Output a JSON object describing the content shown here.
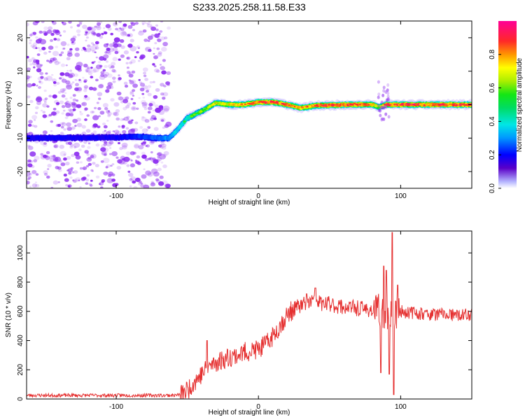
{
  "title": "S233.2025.258.11.58.E33",
  "colors": {
    "snr_line": "#e53030",
    "noise": "#8c2cf0",
    "frame": "#000000"
  },
  "chart_data": [
    {
      "type": "heatmap",
      "name": "spectrogram",
      "title": "S233.2025.258.11.58.E33",
      "xlabel": "Height of straight line (km)",
      "ylabel": "Frequency (Hz)",
      "xlim": [
        -163,
        150
      ],
      "ylim": [
        -25,
        25
      ],
      "x_ticks": [
        -100,
        0,
        100
      ],
      "y_ticks": [
        -20,
        -10,
        0,
        10,
        20
      ],
      "noise_region_x": [
        -163,
        -63
      ],
      "ridge": {
        "x": [
          -163,
          -100,
          -85,
          -70,
          -63,
          -58,
          -50,
          -40,
          -30,
          -20,
          -10,
          0,
          10,
          20,
          30,
          40,
          50,
          60,
          70,
          80,
          85,
          90,
          100,
          110,
          120,
          130,
          140,
          150
        ],
        "freq_hz": [
          -10,
          -9.8,
          -9.5,
          -10,
          -10,
          -8,
          -4,
          -2,
          0.5,
          0,
          0,
          0.7,
          0.8,
          0,
          -1,
          -0.3,
          -0.2,
          0,
          0,
          0,
          -0.7,
          0,
          0,
          0,
          0,
          0,
          0,
          0
        ],
        "amplitude": [
          0.15,
          0.15,
          0.2,
          0.3,
          0.35,
          0.45,
          0.55,
          0.6,
          0.7,
          0.75,
          0.8,
          0.9,
          0.9,
          0.85,
          0.8,
          0.85,
          0.9,
          0.9,
          0.88,
          0.85,
          0.6,
          0.9,
          0.88,
          0.9,
          0.88,
          0.9,
          0.9,
          0.9
        ]
      },
      "colorbar": {
        "label": "Normalized spectral amplitude",
        "range": [
          0,
          1
        ],
        "ticks": [
          "0.0",
          "0.2",
          "0.4",
          "0.6",
          "0.8"
        ],
        "tick_values": [
          0,
          0.2,
          0.4,
          0.6,
          0.8
        ]
      }
    },
    {
      "type": "line",
      "name": "snr",
      "xlabel": "Height of straight line (km)",
      "ylabel": "SNR (10 * v/v)",
      "xlim": [
        -163,
        150
      ],
      "ylim": [
        0,
        1150
      ],
      "x_ticks": [
        -100,
        0,
        100
      ],
      "y_ticks": [
        0,
        200,
        400,
        600,
        800,
        1000
      ],
      "profile": {
        "x": [
          -163,
          -60,
          -55,
          -50,
          -45,
          -40,
          -35,
          -30,
          -25,
          -20,
          -15,
          -10,
          -5,
          0,
          5,
          10,
          15,
          20,
          25,
          30,
          35,
          40,
          45,
          50,
          55,
          60,
          70,
          80,
          85,
          90,
          95,
          100,
          110,
          120,
          130,
          140,
          150
        ],
        "snr": [
          25,
          25,
          30,
          60,
          120,
          170,
          220,
          250,
          270,
          290,
          300,
          320,
          330,
          340,
          370,
          430,
          500,
          570,
          620,
          640,
          660,
          680,
          650,
          650,
          640,
          630,
          620,
          610,
          600,
          600,
          580,
          600,
          590,
          580,
          580,
          570,
          580
        ]
      },
      "spikes": [
        {
          "x": -36,
          "snr": 400
        },
        {
          "x": 34,
          "snr": 720
        },
        {
          "x": 40,
          "snr": 760
        },
        {
          "x": 86,
          "snr": 180
        },
        {
          "x": 88,
          "snr": 910
        },
        {
          "x": 90,
          "snr": 880
        },
        {
          "x": 92,
          "snr": 170
        },
        {
          "x": 94,
          "snr": 1140
        },
        {
          "x": 95,
          "snr": 30
        },
        {
          "x": 98,
          "snr": 780
        }
      ]
    }
  ]
}
